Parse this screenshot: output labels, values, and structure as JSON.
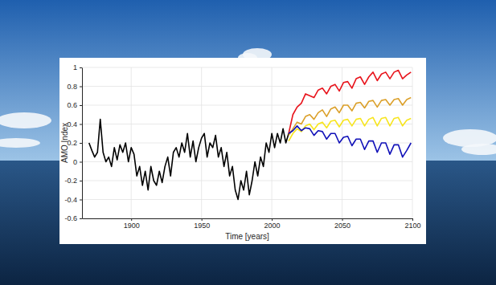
{
  "chart_data": {
    "type": "line",
    "x_label": "Time [years]",
    "y_label": "AMO Index",
    "xlim": [
      1865,
      2100
    ],
    "xticks": [
      1900,
      1950,
      2000,
      2050,
      2100
    ],
    "ylim": [
      -0.6,
      1
    ],
    "yticks": [
      -0.6,
      -0.4,
      -0.2,
      0,
      0.2,
      0.4,
      0.6,
      0.8,
      1
    ],
    "grid": true,
    "series": [
      {
        "color": "#000000",
        "x": [
          1870,
          1872,
          1874,
          1876,
          1878,
          1880,
          1882,
          1884,
          1886,
          1888,
          1890,
          1892,
          1894,
          1896,
          1898,
          1900,
          1902,
          1904,
          1906,
          1908,
          1910,
          1912,
          1914,
          1916,
          1918,
          1920,
          1922,
          1924,
          1926,
          1928,
          1930,
          1932,
          1934,
          1936,
          1938,
          1940,
          1942,
          1944,
          1946,
          1948,
          1950,
          1952,
          1954,
          1956,
          1958,
          1960,
          1962,
          1964,
          1966,
          1968,
          1970,
          1972,
          1974,
          1976,
          1978,
          1980,
          1982,
          1984,
          1986,
          1988,
          1990,
          1992,
          1994,
          1996,
          1998,
          2000,
          2002,
          2004,
          2006,
          2008,
          2010,
          2012
        ],
        "values": [
          0.2,
          0.12,
          0.05,
          0.1,
          0.45,
          0.1,
          0.0,
          0.05,
          -0.05,
          0.15,
          0.02,
          0.18,
          0.1,
          0.2,
          0.0,
          0.15,
          0.08,
          -0.15,
          -0.05,
          -0.25,
          -0.1,
          -0.3,
          -0.05,
          -0.2,
          -0.25,
          -0.1,
          -0.22,
          -0.05,
          0.05,
          -0.15,
          0.1,
          0.15,
          0.05,
          0.2,
          0.1,
          0.3,
          0.05,
          0.22,
          0.0,
          0.15,
          0.25,
          0.3,
          0.05,
          0.2,
          0.15,
          0.28,
          0.05,
          0.15,
          -0.05,
          0.1,
          -0.15,
          -0.05,
          -0.3,
          -0.4,
          -0.2,
          -0.3,
          -0.1,
          -0.35,
          -0.2,
          0.0,
          -0.15,
          0.05,
          -0.05,
          0.2,
          0.1,
          0.3,
          0.15,
          0.3,
          0.2,
          0.35,
          0.2,
          0.3
        ]
      },
      {
        "color": "#e8141c",
        "x": [
          2012,
          2015,
          2018,
          2021,
          2024,
          2027,
          2030,
          2033,
          2036,
          2039,
          2042,
          2045,
          2048,
          2051,
          2054,
          2057,
          2060,
          2063,
          2066,
          2069,
          2072,
          2075,
          2078,
          2081,
          2084,
          2087,
          2090,
          2093,
          2096,
          2099
        ],
        "values": [
          0.3,
          0.5,
          0.58,
          0.62,
          0.72,
          0.7,
          0.68,
          0.76,
          0.78,
          0.72,
          0.8,
          0.82,
          0.75,
          0.84,
          0.85,
          0.78,
          0.88,
          0.9,
          0.82,
          0.9,
          0.95,
          0.86,
          0.93,
          0.95,
          0.88,
          0.95,
          0.97,
          0.88,
          0.92,
          0.95
        ]
      },
      {
        "color": "#dba02a",
        "x": [
          2012,
          2015,
          2018,
          2021,
          2024,
          2027,
          2030,
          2033,
          2036,
          2039,
          2042,
          2045,
          2048,
          2051,
          2054,
          2057,
          2060,
          2063,
          2066,
          2069,
          2072,
          2075,
          2078,
          2081,
          2084,
          2087,
          2090,
          2093,
          2096,
          2099
        ],
        "values": [
          0.28,
          0.35,
          0.42,
          0.4,
          0.48,
          0.5,
          0.45,
          0.52,
          0.55,
          0.48,
          0.56,
          0.58,
          0.52,
          0.6,
          0.6,
          0.54,
          0.62,
          0.63,
          0.57,
          0.64,
          0.65,
          0.58,
          0.65,
          0.66,
          0.6,
          0.66,
          0.67,
          0.6,
          0.66,
          0.68
        ]
      },
      {
        "color": "#f7e51e",
        "x": [
          2012,
          2015,
          2018,
          2021,
          2024,
          2027,
          2030,
          2033,
          2036,
          2039,
          2042,
          2045,
          2048,
          2051,
          2054,
          2057,
          2060,
          2063,
          2066,
          2069,
          2072,
          2075,
          2078,
          2081,
          2084,
          2087,
          2090,
          2093,
          2096,
          2099
        ],
        "values": [
          0.22,
          0.3,
          0.35,
          0.32,
          0.38,
          0.4,
          0.34,
          0.4,
          0.42,
          0.36,
          0.43,
          0.44,
          0.37,
          0.44,
          0.45,
          0.38,
          0.45,
          0.46,
          0.38,
          0.45,
          0.47,
          0.38,
          0.46,
          0.47,
          0.38,
          0.46,
          0.47,
          0.38,
          0.44,
          0.46
        ]
      },
      {
        "color": "#1010b8",
        "x": [
          2012,
          2015,
          2018,
          2021,
          2024,
          2027,
          2030,
          2033,
          2036,
          2039,
          2042,
          2045,
          2048,
          2051,
          2054,
          2057,
          2060,
          2063,
          2066,
          2069,
          2072,
          2075,
          2078,
          2081,
          2084,
          2087,
          2090,
          2093,
          2096,
          2099
        ],
        "values": [
          0.3,
          0.33,
          0.38,
          0.33,
          0.36,
          0.35,
          0.28,
          0.33,
          0.32,
          0.24,
          0.3,
          0.3,
          0.2,
          0.26,
          0.27,
          0.17,
          0.24,
          0.24,
          0.13,
          0.22,
          0.22,
          0.1,
          0.2,
          0.2,
          0.08,
          0.18,
          0.18,
          0.05,
          0.12,
          0.2
        ]
      }
    ]
  }
}
